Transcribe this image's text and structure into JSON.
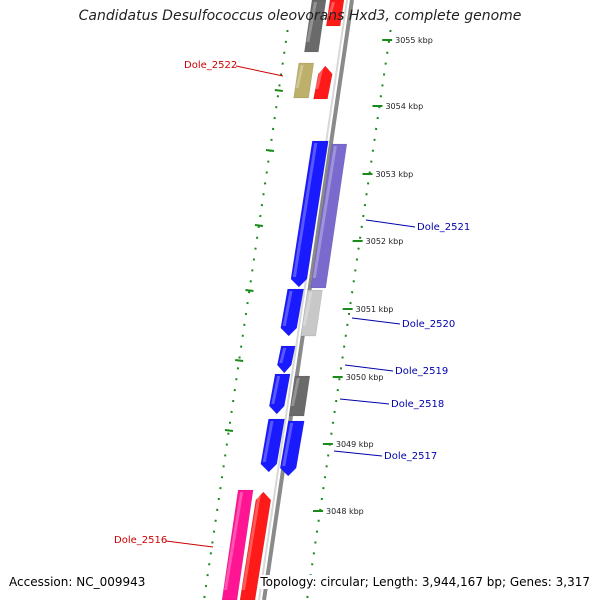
{
  "title": "Candidatus Desulfococcus oleovorans Hxd3, complete genome",
  "accession": "Accession: NC_009943",
  "summary": "Topology: circular; Length: 3,944,167 bp; Genes: 3,317",
  "colors": {
    "forward_red": "#ff1a1a",
    "reverse_blue": "#1a1aff",
    "purple": "#7a6acd",
    "grey": "#c8c8c8",
    "dark_grey": "#6a6a6a",
    "khaki": "#bdb06a",
    "pink": "#ff1493",
    "tick_green": "#1a8a1a",
    "label_red": "#cc0000",
    "label_blue": "#0000aa"
  },
  "ticks": [
    {
      "label": "3055 kbp"
    },
    {
      "label": "3054 kbp"
    },
    {
      "label": "3053 kbp"
    },
    {
      "label": "3052 kbp"
    },
    {
      "label": "3051 kbp"
    },
    {
      "label": "3050 kbp"
    },
    {
      "label": "3049 kbp"
    },
    {
      "label": "3048 kbp"
    }
  ],
  "gene_labels": [
    {
      "name": "Dole_2522",
      "color": "#cc0000"
    },
    {
      "name": "Dole_2521",
      "color": "#0000aa"
    },
    {
      "name": "Dole_2520",
      "color": "#0000aa"
    },
    {
      "name": "Dole_2519",
      "color": "#0000aa"
    },
    {
      "name": "Dole_2518",
      "color": "#0000aa"
    },
    {
      "name": "Dole_2517",
      "color": "#0000aa"
    },
    {
      "name": "Dole_2516",
      "color": "#cc0000"
    }
  ]
}
